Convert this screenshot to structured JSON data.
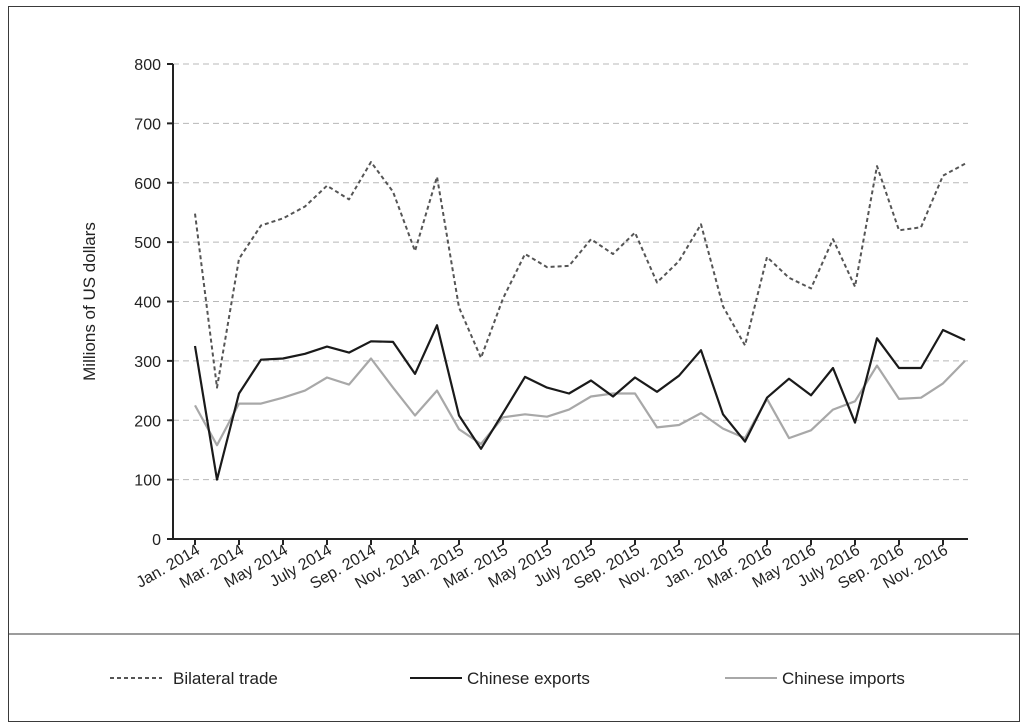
{
  "chart_data": {
    "type": "line",
    "title": "",
    "xlabel": "",
    "ylabel": "Millions of US dollars",
    "ylim": [
      0,
      800
    ],
    "yticks": [
      "0",
      "100",
      "200",
      "300",
      "400",
      "500",
      "600",
      "700",
      "800"
    ],
    "grid": "horizontal dashed",
    "legend_position": "bottom",
    "x_tick_labels": [
      "Jan. 2014",
      "Mar. 2014",
      "May 2014",
      "July 2014",
      "Sep. 2014",
      "Nov. 2014",
      "Jan. 2015",
      "Mar. 2015",
      "May 2015",
      "July 2015",
      "Sep. 2015",
      "Nov. 2015",
      "Jan. 2016",
      "Mar. 2016",
      "May 2016",
      "July 2016",
      "Sep. 2016",
      "Nov. 2016"
    ],
    "x": [
      "2014-01",
      "2014-02",
      "2014-03",
      "2014-04",
      "2014-05",
      "2014-06",
      "2014-07",
      "2014-08",
      "2014-09",
      "2014-10",
      "2014-11",
      "2014-12",
      "2015-01",
      "2015-02",
      "2015-03",
      "2015-04",
      "2015-05",
      "2015-06",
      "2015-07",
      "2015-08",
      "2015-09",
      "2015-10",
      "2015-11",
      "2015-12",
      "2016-01",
      "2016-02",
      "2016-03",
      "2016-04",
      "2016-05",
      "2016-06",
      "2016-07",
      "2016-08",
      "2016-09",
      "2016-10",
      "2016-11",
      "2016-12"
    ],
    "series": [
      {
        "name": "Bilateral trade",
        "color": "#555555",
        "style": "dotted",
        "values": [
          548,
          255,
          472,
          528,
          540,
          560,
          595,
          572,
          635,
          585,
          485,
          610,
          390,
          305,
          405,
          480,
          458,
          460,
          505,
          480,
          516,
          432,
          468,
          530,
          392,
          326,
          475,
          440,
          422,
          505,
          425,
          628,
          520,
          525,
          612,
          632
        ]
      },
      {
        "name": "Chinese exports",
        "color": "#1a1a1a",
        "style": "solid",
        "values": [
          325,
          100,
          245,
          302,
          304,
          312,
          324,
          314,
          333,
          332,
          278,
          360,
          208,
          152,
          212,
          273,
          255,
          245,
          267,
          240,
          272,
          248,
          275,
          318,
          210,
          164,
          238,
          270,
          242,
          288,
          196,
          338,
          288,
          288,
          352,
          335
        ]
      },
      {
        "name": "Chinese imports",
        "color": "#a8a8a8",
        "style": "solid",
        "values": [
          225,
          158,
          228,
          228,
          238,
          250,
          272,
          260,
          304,
          255,
          208,
          250,
          185,
          160,
          205,
          210,
          206,
          218,
          240,
          245,
          245,
          188,
          192,
          212,
          186,
          170,
          236,
          170,
          183,
          218,
          232,
          292,
          236,
          238,
          262,
          300
        ]
      }
    ]
  }
}
